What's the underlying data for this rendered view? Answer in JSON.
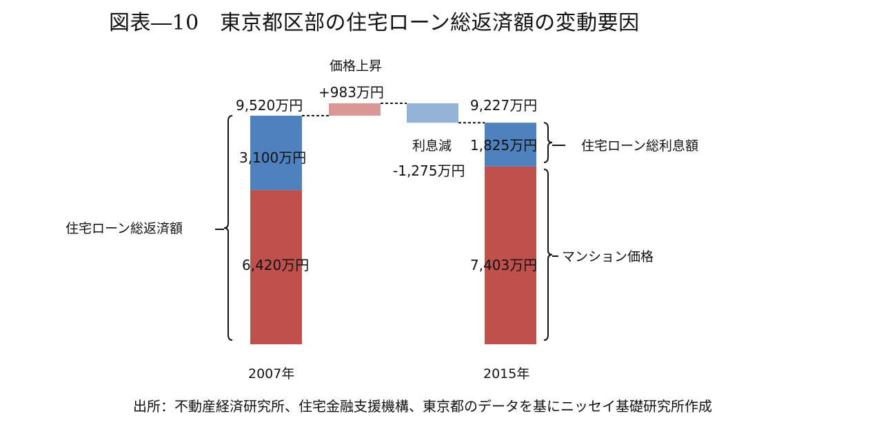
{
  "title": "図表―10　東京都区部の住宅ローン総返済額の変動要因",
  "source": "出所：不動産経済研究所、住宅金融支援機構、東京都のデータを基にニッセイ基礎研究所作成",
  "colors": {
    "interest": "#4f81bd",
    "price": "#c0504d",
    "increase": "#d99694",
    "decrease": "#95b3d7"
  },
  "chart_data": {
    "type": "bar",
    "subtype": "waterfall",
    "unit": "万円",
    "categories": [
      "2007年",
      "2015年"
    ],
    "series": [
      {
        "name": "マンション価格",
        "values": [
          6420,
          7403
        ]
      },
      {
        "name": "住宅ローン総利息額",
        "values": [
          3100,
          1825
        ]
      }
    ],
    "totals": [
      9520,
      9227
    ],
    "changes": [
      {
        "name": "価格上昇",
        "value": 983
      },
      {
        "name": "利息減",
        "value": -1275
      }
    ],
    "ylim": [
      0,
      9520
    ],
    "labels": {
      "total_2007": "9,520万円",
      "interest_2007": "3,100万円",
      "price_2007": "6,420万円",
      "total_2015": "9,227万円",
      "interest_2015": "1,825万円",
      "price_2015": "7,403万円",
      "increase_value": "+983万円",
      "decrease_value": "-1,275万円"
    },
    "annotations": {
      "total_repayment": "住宅ローン総返済額",
      "total_interest": "住宅ローン総利息額",
      "condo_price": "マンション価格"
    }
  }
}
